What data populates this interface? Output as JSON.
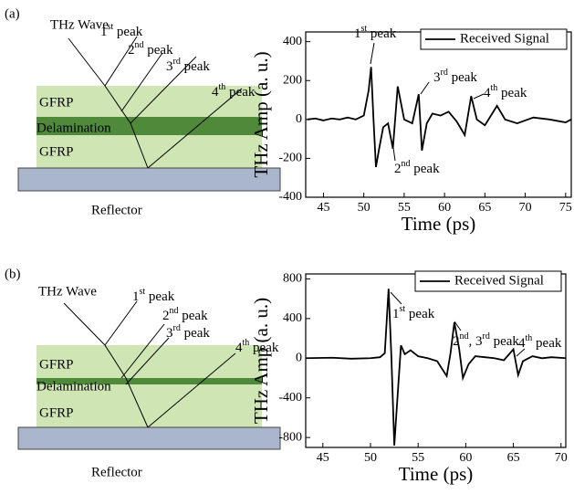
{
  "diagrams": [
    {
      "panel": "(a)",
      "wave": "THz Wave",
      "peaks": [
        [
          "1",
          "st",
          " peak"
        ],
        [
          "2",
          "nd",
          " peak"
        ],
        [
          "3",
          "rd",
          " peak"
        ],
        [
          "4",
          "th",
          " peak"
        ]
      ],
      "layers": [
        "GFRP",
        "Delamination",
        "GFRP"
      ],
      "reflector": "Reflector"
    },
    {
      "panel": "(b)",
      "wave": "THz Wave",
      "peaks": [
        [
          "1",
          "st",
          " peak"
        ],
        [
          "2",
          "nd",
          " peak"
        ],
        [
          "3",
          "rd",
          " peak"
        ],
        [
          "4",
          "th",
          " peak"
        ]
      ],
      "layers": [
        "GFRP",
        "Delamination",
        "GFRP"
      ],
      "reflector": "Reflector"
    }
  ],
  "chart_data": [
    {
      "type": "line",
      "xlabel": "Time (ps)",
      "ylabel": "THz Amp (a. u.)",
      "xlim": [
        42.8,
        75.7
      ],
      "xticks": [
        45,
        50,
        55,
        60,
        65,
        70,
        75
      ],
      "ylim": [
        -400,
        450
      ],
      "yticks": [
        -400,
        -200,
        0,
        200,
        400
      ],
      "legend": "upper right",
      "x": [
        43,
        44,
        45,
        46,
        47,
        48,
        49,
        50,
        50.6,
        50.9,
        51.2,
        51.5,
        51.9,
        52.4,
        53,
        53.6,
        54.2,
        55,
        56,
        56.8,
        57.2,
        57.8,
        58.5,
        59.5,
        60.5,
        61.5,
        62.5,
        63.3,
        64,
        65,
        66.5,
        67.5,
        69,
        71,
        73,
        75,
        75.7
      ],
      "series": [
        {
          "name": "Received Signal",
          "color": "#000000",
          "values": [
            0,
            5,
            -5,
            5,
            0,
            10,
            0,
            20,
            150,
            270,
            0,
            -245,
            -150,
            -40,
            -20,
            -150,
            170,
            0,
            -20,
            130,
            -160,
            -20,
            30,
            20,
            40,
            -10,
            -80,
            120,
            0,
            -30,
            70,
            0,
            -20,
            10,
            0,
            -15,
            0
          ]
        }
      ],
      "annotations": [
        [
          "1",
          "st",
          " peak"
        ],
        [
          "2",
          "nd",
          " peak"
        ],
        [
          "3",
          "rd",
          " peak"
        ],
        [
          "4",
          "th",
          " peak"
        ]
      ]
    },
    {
      "type": "line",
      "xlabel": "Time (ps)",
      "ylabel": "THz Amp (a. u.)",
      "xlim": [
        43.2,
        70.5
      ],
      "xticks": [
        45,
        50,
        55,
        60,
        65,
        70
      ],
      "ylim": [
        -900,
        850
      ],
      "yticks": [
        -800,
        -400,
        0,
        400,
        800
      ],
      "legend": "upper right",
      "x": [
        43.2,
        46,
        48,
        50,
        51,
        51.5,
        51.9,
        52.2,
        52.5,
        52.9,
        53.2,
        53.6,
        54.2,
        55,
        56,
        57,
        58,
        58.4,
        58.8,
        59.3,
        59.7,
        60.3,
        61,
        62,
        63,
        64,
        65,
        65.5,
        66,
        67,
        68,
        69,
        70.5
      ],
      "series": [
        {
          "name": "Received Signal",
          "color": "#000000",
          "values": [
            0,
            5,
            -5,
            0,
            10,
            50,
            700,
            0,
            -880,
            -300,
            130,
            40,
            80,
            20,
            0,
            -30,
            -180,
            50,
            360,
            100,
            -200,
            -60,
            20,
            10,
            0,
            -20,
            90,
            -170,
            -30,
            20,
            0,
            10,
            0
          ]
        }
      ],
      "annotations": [
        [
          "1",
          "st",
          " peak"
        ],
        [
          "2",
          "nd",
          ", 3",
          "rd",
          " peak"
        ],
        [
          "4",
          "th",
          " peak"
        ]
      ]
    }
  ]
}
